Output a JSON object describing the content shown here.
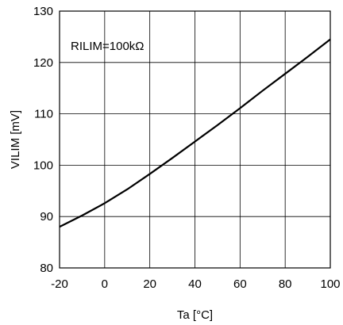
{
  "chart_data": {
    "type": "line",
    "title": "",
    "xlabel": "Ta [°C]",
    "ylabel": "VILIM [mV]",
    "xlim": [
      -20,
      100
    ],
    "ylim": [
      80,
      130
    ],
    "x_ticks": [
      -20,
      0,
      20,
      40,
      60,
      80,
      100
    ],
    "y_ticks": [
      80,
      90,
      100,
      110,
      120,
      130
    ],
    "x_tick_labels": [
      "-20",
      "0",
      "20",
      "40",
      "60",
      "80",
      "100"
    ],
    "y_tick_labels": [
      "80",
      "90",
      "100",
      "110",
      "120",
      "130"
    ],
    "grid": true,
    "legend": "none",
    "annotations": [
      {
        "text": "RILIM=100kΩ"
      }
    ],
    "series": [
      {
        "x": [
          -20,
          -10,
          0,
          10,
          20,
          30,
          40,
          50,
          60,
          70,
          80,
          90,
          100
        ],
        "y": [
          88.0,
          90.2,
          92.6,
          95.3,
          98.3,
          101.4,
          104.6,
          107.8,
          111.1,
          114.5,
          117.8,
          121.1,
          124.5
        ],
        "color": "#000000"
      }
    ]
  }
}
